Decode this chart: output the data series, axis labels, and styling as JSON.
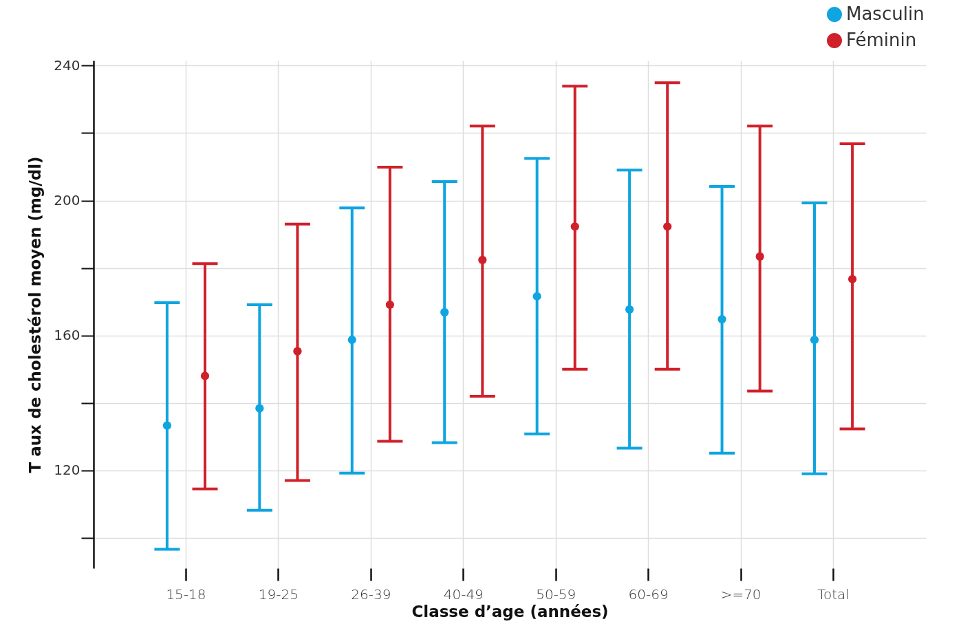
{
  "chart_data": {
    "type": "scatter",
    "xlabel": "Classe d’age (années)",
    "ylabel": "T aux de cholestérol moyen (mg/dl)",
    "categories": [
      "15-18",
      "19-25",
      "26-39",
      "40-49",
      "50-59",
      "60-69",
      ">=70",
      "Total"
    ],
    "series": [
      {
        "name": "Masculin",
        "color": "#0ea5e0",
        "values": [
          133.3,
          138.4,
          158.7,
          166.9,
          171.6,
          167.7,
          164.8,
          158.7
        ],
        "errors": [
          [
            96.6,
            169.7
          ],
          [
            108.2,
            169.1
          ],
          [
            119.2,
            197.8
          ],
          [
            128.2,
            205.6
          ],
          [
            130.8,
            212.5
          ],
          [
            126.6,
            209.0
          ],
          [
            125.1,
            204.2
          ],
          [
            119.0,
            199.3
          ]
        ]
      },
      {
        "name": "Féminin",
        "color": "#d0202a",
        "values": [
          148.0,
          155.3,
          169.1,
          182.4,
          192.3,
          192.3,
          183.4,
          176.7
        ],
        "errors": [
          [
            114.5,
            181.3
          ],
          [
            117.0,
            193.0
          ],
          [
            128.6,
            209.9
          ],
          [
            142.0,
            222.1
          ],
          [
            150.0,
            233.9
          ],
          [
            150.0,
            234.9
          ],
          [
            143.5,
            222.1
          ],
          [
            132.3,
            216.8
          ]
        ]
      }
    ],
    "ylim": [
      91,
      241.5
    ],
    "yticks": [
      {
        "value": 100,
        "label": null
      },
      120,
      {
        "value": 140,
        "label": null
      },
      160,
      {
        "value": 180,
        "label": null
      },
      200,
      {
        "value": 220,
        "label": null
      },
      240
    ],
    "grid": true,
    "legend": "top right",
    "marker": "circle"
  }
}
